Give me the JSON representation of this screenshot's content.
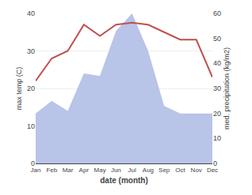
{
  "chart_data": {
    "type": "line",
    "categories": [
      "Jan",
      "Feb",
      "Mar",
      "Apr",
      "May",
      "Jun",
      "Jul",
      "Aug",
      "Sep",
      "Oct",
      "Nov",
      "Dec"
    ],
    "series": [
      {
        "type": "line",
        "color": "#c0504d",
        "values": [
          22,
          28,
          30,
          37,
          34,
          37,
          37.5,
          37,
          35,
          33,
          33,
          23
        ]
      },
      {
        "type": "area",
        "color": "#b8c4e8",
        "axis": "y2",
        "values": [
          20,
          25,
          21,
          36,
          35,
          53,
          60,
          45,
          23,
          20,
          20,
          20
        ]
      }
    ],
    "xlabel": "date (month)",
    "ylabel": "max temp (C)",
    "y2label": "med. precipitation (kg/m2)",
    "ylim": [
      0,
      40
    ],
    "yticks": [
      0,
      10,
      20,
      30,
      40
    ],
    "y2lim": [
      0,
      60
    ],
    "y2ticks": [
      0,
      10,
      20,
      30,
      40,
      50,
      60
    ],
    "grid": true
  }
}
